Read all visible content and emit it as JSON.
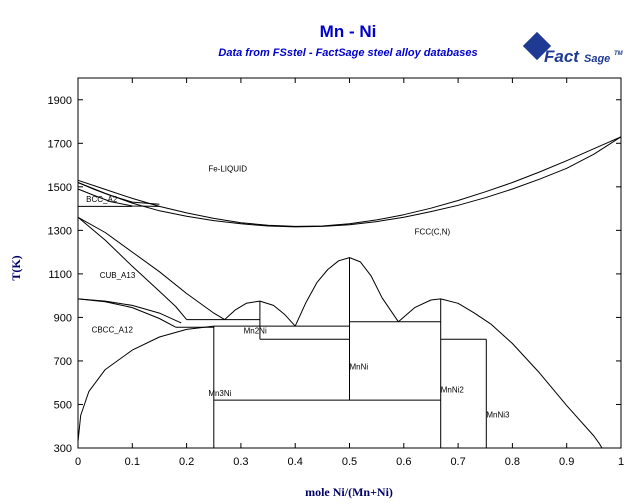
{
  "colors": {
    "title": "#0000cc",
    "axis_label": "#000066",
    "logo": "#1f3a93",
    "line": "#000000"
  },
  "logo": {
    "text_main": "Fact",
    "text_sage": "Sage",
    "trademark": "TM"
  },
  "chart_data": {
    "type": "line",
    "title": "Mn - Ni",
    "subtitle": "Data from FSstel - FactSage steel alloy databases",
    "xlabel": "mole Ni/(Mn+Ni)",
    "ylabel": "T(K)",
    "xlim": [
      0,
      1
    ],
    "ylim": [
      300,
      2000
    ],
    "xticks": [
      "0",
      "0.1",
      "0.2",
      "0.3",
      "0.4",
      "0.5",
      "0.6",
      "0.7",
      "0.8",
      "0.9",
      "1"
    ],
    "yticks": [
      "300",
      "500",
      "700",
      "900",
      "1100",
      "1300",
      "1500",
      "1700",
      "1900"
    ],
    "grid": false,
    "labels": [
      {
        "text": "Fe-LIQUID",
        "x": 0.24,
        "y": 1570
      },
      {
        "text": "BCC_A2",
        "x": 0.015,
        "y": 1430
      },
      {
        "text": "CUB_A13",
        "x": 0.04,
        "y": 1080
      },
      {
        "text": "CBCC_A12",
        "x": 0.025,
        "y": 830
      },
      {
        "text": "FCC(C,N)",
        "x": 0.62,
        "y": 1280
      },
      {
        "text": "Mn2Ni",
        "x": 0.305,
        "y": 825
      },
      {
        "text": "MnNi",
        "x": 0.5,
        "y": 660
      },
      {
        "text": "MnNi2",
        "x": 0.668,
        "y": 555
      },
      {
        "text": "Mn3Ni",
        "x": 0.24,
        "y": 540
      },
      {
        "text": "MnNi3",
        "x": 0.752,
        "y": 440
      }
    ],
    "series": [
      {
        "x": [
          0,
          0.05,
          0.1,
          0.15,
          0.2,
          0.25,
          0.3,
          0.35,
          0.4,
          0.45,
          0.5,
          0.55,
          0.6,
          0.65,
          0.7,
          0.75,
          0.8,
          0.85,
          0.9,
          0.95,
          1
        ],
        "y": [
          1530,
          1488,
          1447,
          1410,
          1380,
          1355,
          1335,
          1323,
          1318,
          1320,
          1330,
          1348,
          1372,
          1402,
          1437,
          1477,
          1520,
          1568,
          1620,
          1675,
          1730
        ]
      },
      {
        "x": [
          0,
          0.05,
          0.1,
          0.15,
          0.2,
          0.25,
          0.3,
          0.35,
          0.4,
          0.45,
          0.5,
          0.55,
          0.6,
          0.65,
          0.7,
          0.75,
          0.8,
          0.85,
          0.9,
          0.95,
          1
        ],
        "y": [
          1520,
          1470,
          1425,
          1390,
          1365,
          1345,
          1330,
          1320,
          1316,
          1318,
          1326,
          1340,
          1360,
          1386,
          1415,
          1450,
          1490,
          1535,
          1585,
          1650,
          1730
        ]
      },
      {
        "x": [
          0,
          0.1
        ],
        "y": [
          1410,
          1410
        ]
      },
      {
        "x": [
          0,
          0.03,
          0.06,
          0.1,
          0.15
        ],
        "y": [
          1520,
          1488,
          1460,
          1430,
          1420
        ]
      },
      {
        "x": [
          0,
          0.03,
          0.06,
          0.1,
          0.15
        ],
        "y": [
          1490,
          1460,
          1432,
          1412,
          1410
        ]
      },
      {
        "x": [
          0,
          0.05,
          0.1,
          0.15,
          0.2,
          0.25,
          0.27
        ],
        "y": [
          1360,
          1290,
          1200,
          1110,
          1010,
          920,
          890
        ]
      },
      {
        "x": [
          0,
          0.05,
          0.1,
          0.15,
          0.18,
          0.2
        ],
        "y": [
          1360,
          1255,
          1135,
          1020,
          950,
          890
        ]
      },
      {
        "x": [
          0,
          0.05,
          0.1,
          0.15,
          0.19
        ],
        "y": [
          985,
          975,
          955,
          920,
          875
        ]
      },
      {
        "x": [
          0,
          0.05,
          0.1,
          0.15,
          0.18
        ],
        "y": [
          985,
          972,
          945,
          895,
          855
        ]
      },
      {
        "x": [
          0,
          0.005,
          0.02,
          0.05,
          0.1,
          0.15,
          0.2,
          0.25
        ],
        "y": [
          330,
          450,
          560,
          660,
          750,
          810,
          845,
          860
        ]
      },
      {
        "x": [
          0.2,
          0.335
        ],
        "y": [
          890,
          890
        ]
      },
      {
        "x": [
          0.18,
          0.25
        ],
        "y": [
          855,
          855
        ]
      },
      {
        "x": [
          0.25,
          0.5
        ],
        "y": [
          860,
          860
        ]
      },
      {
        "x": [
          0.335,
          0.5
        ],
        "y": [
          800,
          800
        ]
      },
      {
        "x": [
          0.5,
          0.668
        ],
        "y": [
          880,
          880
        ]
      },
      {
        "x": [
          0.668,
          0.752
        ],
        "y": [
          800,
          800
        ]
      },
      {
        "x": [
          0.25,
          0.668
        ],
        "y": [
          520,
          520
        ]
      },
      {
        "x": [
          0.25,
          0.25
        ],
        "y": [
          300,
          860
        ]
      },
      {
        "x": [
          0.335,
          0.335
        ],
        "y": [
          800,
          975
        ]
      },
      {
        "x": [
          0.5,
          0.5
        ],
        "y": [
          520,
          1175
        ]
      },
      {
        "x": [
          0.668,
          0.668
        ],
        "y": [
          300,
          985
        ]
      },
      {
        "x": [
          0.752,
          0.752
        ],
        "y": [
          300,
          800
        ]
      },
      {
        "x": [
          0.27,
          0.29,
          0.31,
          0.335,
          0.36,
          0.38,
          0.4
        ],
        "y": [
          890,
          935,
          965,
          975,
          955,
          915,
          860
        ]
      },
      {
        "x": [
          0.4,
          0.42,
          0.44,
          0.46,
          0.48,
          0.5,
          0.52,
          0.54,
          0.56,
          0.59
        ],
        "y": [
          860,
          970,
          1060,
          1120,
          1160,
          1175,
          1155,
          1090,
          990,
          880
        ]
      },
      {
        "x": [
          0.59,
          0.62,
          0.65,
          0.668,
          0.7,
          0.73,
          0.76
        ],
        "y": [
          880,
          945,
          980,
          985,
          965,
          920,
          870
        ]
      },
      {
        "x": [
          0.76,
          0.8,
          0.85,
          0.9,
          0.95,
          0.96,
          0.965
        ],
        "y": [
          870,
          780,
          645,
          495,
          355,
          320,
          300
        ]
      }
    ]
  }
}
